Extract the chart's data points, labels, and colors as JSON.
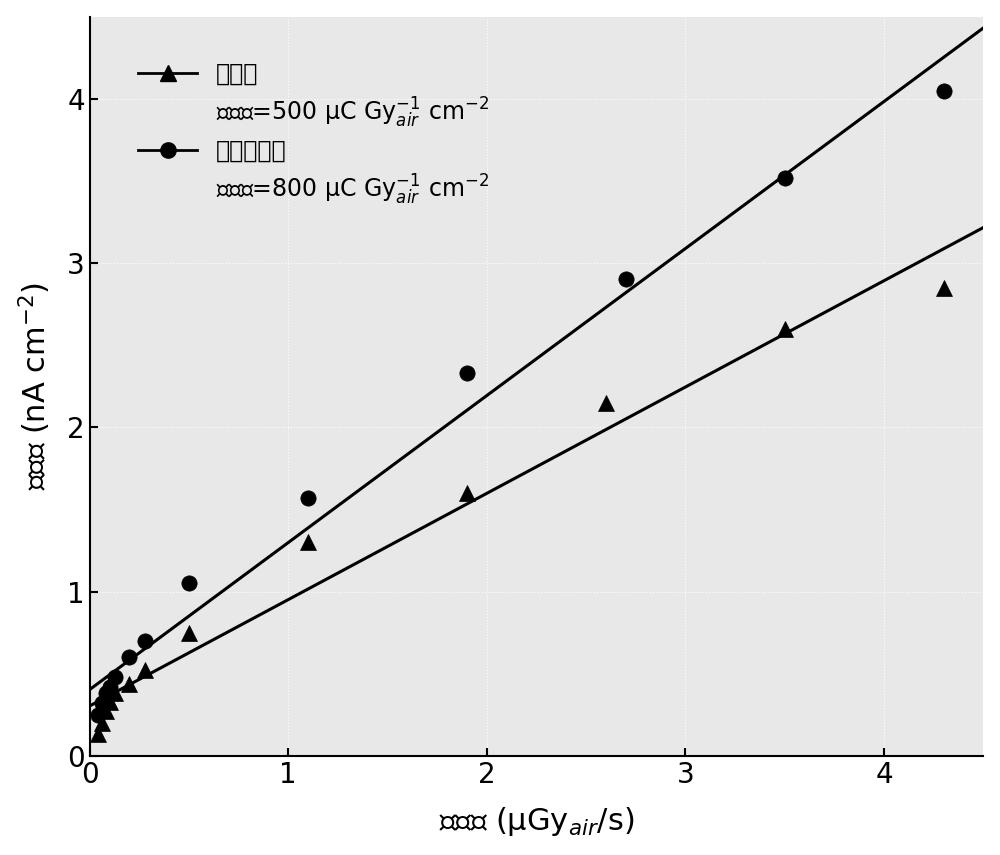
{
  "control_x": [
    0.04,
    0.06,
    0.08,
    0.1,
    0.13,
    0.2,
    0.28,
    0.5,
    1.1,
    1.9,
    2.6,
    3.5,
    4.3
  ],
  "control_y": [
    0.13,
    0.2,
    0.27,
    0.33,
    0.38,
    0.44,
    0.52,
    0.75,
    1.3,
    1.6,
    2.15,
    2.6,
    2.85
  ],
  "treated_x": [
    0.04,
    0.06,
    0.08,
    0.1,
    0.13,
    0.2,
    0.28,
    0.5,
    1.1,
    1.9,
    2.7,
    3.5,
    4.3
  ],
  "treated_y": [
    0.25,
    0.32,
    0.38,
    0.42,
    0.48,
    0.6,
    0.7,
    1.05,
    1.57,
    2.33,
    2.9,
    3.52,
    4.05
  ],
  "xlabel": "剂量率 (μGy$_{air}$/s)",
  "ylabel": "光电流 (nA cm$^{-2}$)",
  "legend_label1": "对照样",
  "legend_label1b": "灵敏度=500 μC Gy$_{{air}}^{{-1}}$ cm$^{{-2}}$",
  "legend_label2": "后处理晶体",
  "legend_label2b": "灵敏度=800 μC Gy$_{{air}}^{{-1}}$ cm$^{{-2}}$",
  "xlim": [
    0,
    4.5
  ],
  "ylim": [
    0,
    4.5
  ],
  "xticks": [
    0,
    1,
    2,
    3,
    4
  ],
  "yticks": [
    0,
    1,
    2,
    3,
    4
  ],
  "line_color": "#000000",
  "marker_color": "#000000",
  "background_color": "#e8e8e8",
  "control_sensitivity": 500,
  "treated_sensitivity": 800
}
